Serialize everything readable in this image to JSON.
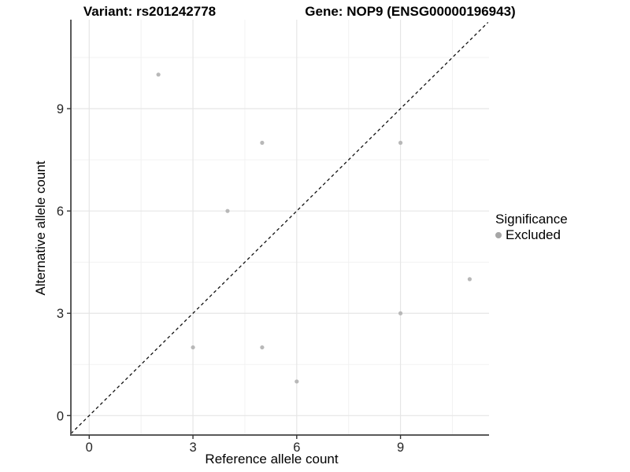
{
  "header": {
    "variant_title": "Variant: rs201242778",
    "gene_title": "Gene: NOP9 (ENSG00000196943)"
  },
  "chart_data": {
    "type": "scatter",
    "xlabel": "Reference allele count",
    "ylabel": "Alternative allele count",
    "x_ticks": [
      0,
      3,
      6,
      9
    ],
    "y_ticks": [
      0,
      3,
      6,
      9
    ],
    "x_minor_ticks": [
      1.5,
      4.5,
      7.5,
      10.5
    ],
    "y_minor_ticks": [
      1.5,
      4.5,
      7.5,
      10.5
    ],
    "xlim": [
      -0.53,
      11.56
    ],
    "ylim": [
      -0.57,
      11.61
    ],
    "grid": true,
    "legend_position": "right",
    "identity_line": {
      "style": "dashed",
      "color": "#111111",
      "from": [
        -0.53,
        -0.53
      ],
      "to": [
        11.53,
        11.53
      ]
    },
    "series": [
      {
        "name": "Excluded",
        "color": "#b8b8b8",
        "points": [
          [
            2,
            10
          ],
          [
            5,
            8
          ],
          [
            9,
            8
          ],
          [
            4,
            6
          ],
          [
            11,
            4
          ],
          [
            9,
            3
          ],
          [
            3,
            2
          ],
          [
            5,
            2
          ],
          [
            6,
            1
          ]
        ]
      }
    ],
    "legend": {
      "title": "Significance",
      "items": [
        {
          "label": "Excluded",
          "color": "#a6a6a6"
        }
      ]
    }
  },
  "colors": {
    "background": "#ffffff",
    "grid_major": "#e6e6e6",
    "grid_minor": "#f2f2f2",
    "axis_line": "#5a5a5a",
    "tick_mark": "#333333",
    "tick_label": "#262626"
  }
}
